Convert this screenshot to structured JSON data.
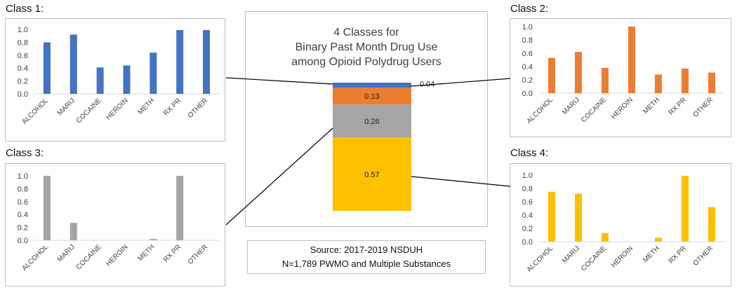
{
  "charts": [
    {
      "title": "Class 1:",
      "type": "bar",
      "color": "#4472C4",
      "categories": [
        "ALCOHOL",
        "MARIJ",
        "COCAINE",
        "HEROIN",
        "METH",
        "RX PR",
        "OTHER"
      ],
      "values": [
        0.8,
        0.92,
        0.41,
        0.44,
        0.64,
        0.99,
        0.99
      ],
      "yticks": [
        "0.0",
        "0.2",
        "0.4",
        "0.6",
        "0.8",
        "1.0"
      ],
      "ylim": [
        0,
        1.0
      ]
    },
    {
      "title": "Class 2:",
      "type": "bar",
      "color": "#ED7D31",
      "categories": [
        "ALCOHOL",
        "MARIJ",
        "COCAINE",
        "HEROIN",
        "METH",
        "RX PR",
        "OTHER"
      ],
      "values": [
        0.53,
        0.62,
        0.38,
        1.0,
        0.28,
        0.37,
        0.31
      ],
      "yticks": [
        "0.0",
        "0.2",
        "0.4",
        "0.6",
        "0.8",
        "1.0"
      ],
      "ylim": [
        0,
        1.0
      ]
    },
    {
      "title": "Class 3:",
      "type": "bar",
      "color": "#A5A5A5",
      "categories": [
        "ALCOHOL",
        "MARIJ",
        "COCAINE",
        "HEROIN",
        "METH",
        "RX PR",
        "OTHER"
      ],
      "values": [
        1.0,
        0.27,
        0.0,
        0.0,
        0.02,
        1.0,
        0.0
      ],
      "yticks": [
        "0.0",
        "0.2",
        "0.4",
        "0.6",
        "0.8",
        "1.0"
      ],
      "ylim": [
        0,
        1.0
      ]
    },
    {
      "title": "Class 4:",
      "type": "bar",
      "color": "#FFC000",
      "categories": [
        "ALCOHOL",
        "MARIJ",
        "COCAINE",
        "HEROIN",
        "METH",
        "RX PR",
        "OTHER"
      ],
      "values": [
        0.75,
        0.72,
        0.13,
        0.0,
        0.06,
        0.99,
        0.52
      ],
      "yticks": [
        "0.0",
        "0.2",
        "0.4",
        "0.6",
        "0.8",
        "1.0"
      ],
      "ylim": [
        0,
        1.0
      ]
    }
  ],
  "stacked": {
    "title_lines": [
      "4 Classes for",
      "Binary Past Month Drug Use",
      "among Opioid Polydrug Users"
    ],
    "type": "stacked-bar",
    "segments": [
      {
        "value": 0.04,
        "label": "0.04",
        "color": "#4472C4"
      },
      {
        "value": 0.13,
        "label": "0.13",
        "color": "#ED7D31"
      },
      {
        "value": 0.26,
        "label": "0.26",
        "color": "#A5A5A5"
      },
      {
        "value": 0.57,
        "label": "0.57",
        "color": "#FFC000"
      }
    ]
  },
  "source": {
    "line1": "Source: 2017-2019 NSDUH",
    "line2": "N=1,789 PWMO and Multiple Substances"
  }
}
